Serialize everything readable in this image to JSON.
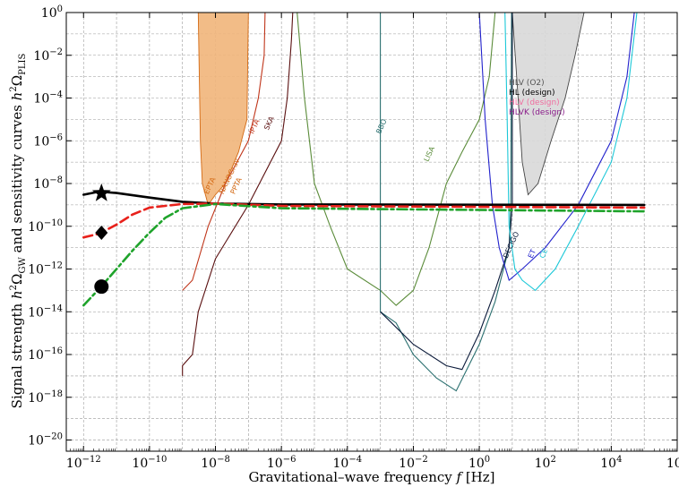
{
  "chart_data": {
    "type": "line",
    "xlabel": "Gravitational–wave frequency f [Hz]",
    "ylabel": "Signal strength h²ΩGW and sensitivity curves h²ΩPLIS",
    "x_scale": "log",
    "y_scale": "log",
    "xlim": [
      3e-13,
      1000000.0
    ],
    "ylim": [
      3e-21,
      1
    ],
    "grid": true,
    "x_ticks": [
      {
        "value": 1e-12,
        "base": "10",
        "exp": "−12"
      },
      {
        "value": 1e-10,
        "base": "10",
        "exp": "−10"
      },
      {
        "value": 1e-08,
        "base": "10",
        "exp": "−8"
      },
      {
        "value": 1e-06,
        "base": "10",
        "exp": "−6"
      },
      {
        "value": 0.0001,
        "base": "10",
        "exp": "−4"
      },
      {
        "value": 0.01,
        "base": "10",
        "exp": "−2"
      },
      {
        "value": 1,
        "base": "10",
        "exp": "0"
      },
      {
        "value": 100,
        "base": "10",
        "exp": "2"
      },
      {
        "value": 10000.0,
        "base": "10",
        "exp": "4"
      },
      {
        "value": 1000000.0,
        "base": "10",
        "exp": "6"
      }
    ],
    "y_ticks": [
      {
        "value": 1e-20,
        "base": "10",
        "exp": "−20"
      },
      {
        "value": 1e-18,
        "base": "10",
        "exp": "−18"
      },
      {
        "value": 1e-16,
        "base": "10",
        "exp": "−16"
      },
      {
        "value": 1e-14,
        "base": "10",
        "exp": "−14"
      },
      {
        "value": 1e-12,
        "base": "10",
        "exp": "−12"
      },
      {
        "value": 1e-10,
        "base": "10",
        "exp": "−10"
      },
      {
        "value": 1e-08,
        "base": "10",
        "exp": "−8"
      },
      {
        "value": 1e-06,
        "base": "10",
        "exp": "−6"
      },
      {
        "value": 0.0001,
        "base": "10",
        "exp": "−4"
      },
      {
        "value": 0.01,
        "base": "10",
        "exp": "−2"
      },
      {
        "value": 1,
        "base": "10",
        "exp": "0"
      }
    ],
    "signals": [
      {
        "style": "solid",
        "color": "#000000",
        "marker": "star",
        "marker_point": [
          3.5e-12,
          3.5e-09
        ],
        "points": [
          [
            1e-12,
            3e-09
          ],
          [
            3e-12,
            4.2e-09
          ],
          [
            1e-11,
            3.6e-09
          ],
          [
            1e-10,
            2.2e-09
          ],
          [
            1e-09,
            1.4e-09
          ],
          [
            1e-08,
            1.15e-09
          ],
          [
            1e-06,
            1.05e-09
          ],
          [
            100000.0,
            1e-09
          ]
        ]
      },
      {
        "style": "dashed",
        "color": "#e8211b",
        "marker": "diamond",
        "marker_point": [
          3.5e-12,
          5e-11
        ],
        "points": [
          [
            1e-12,
            3e-11
          ],
          [
            3e-12,
            4.5e-11
          ],
          [
            1e-11,
            1.2e-10
          ],
          [
            3e-11,
            3.5e-10
          ],
          [
            1e-10,
            7.5e-10
          ],
          [
            1e-09,
            1.1e-09
          ],
          [
            1e-08,
            1.15e-09
          ],
          [
            1e-06,
            9e-10
          ],
          [
            100000.0,
            7.5e-10
          ]
        ]
      },
      {
        "style": "dashdot",
        "color": "#1fa32b",
        "marker": "circle",
        "marker_point": [
          3.5e-12,
          1.5e-13
        ],
        "points": [
          [
            1e-12,
            2e-14
          ],
          [
            3e-12,
            1.2e-13
          ],
          [
            1e-11,
            1e-12
          ],
          [
            3e-11,
            7e-12
          ],
          [
            1e-10,
            5e-11
          ],
          [
            3e-10,
            2.5e-10
          ],
          [
            1e-09,
            7e-10
          ],
          [
            1e-08,
            1.1e-09
          ],
          [
            1e-06,
            7e-10
          ],
          [
            100000.0,
            5e-10
          ]
        ]
      }
    ],
    "detectors": [
      {
        "name": "SKA",
        "color": "#5a1010",
        "label_at": [
          4e-07,
          3e-06
        ],
        "curve": [
          [
            1e-09,
            1e-17
          ],
          [
            1e-09,
            3e-17
          ],
          [
            2e-09,
            1e-16
          ],
          [
            3e-09,
            1e-14
          ],
          [
            1e-08,
            3e-12
          ],
          [
            1e-07,
            1e-09
          ],
          [
            1e-06,
            1e-06
          ],
          [
            1.5e-06,
            0.0001
          ],
          [
            2e-06,
            0.05
          ],
          [
            2.2e-06,
            1
          ]
        ]
      },
      {
        "name": "IPTA",
        "color": "#c0361b",
        "label_at": [
          1.4e-07,
          2e-06
        ],
        "curve": [
          [
            1e-09,
            1e-13
          ],
          [
            1e-09,
            1e-13
          ],
          [
            2e-09,
            3e-13
          ],
          [
            6e-09,
            1e-10
          ],
          [
            2e-08,
            1e-08
          ],
          [
            1e-07,
            1e-06
          ],
          [
            2e-07,
            0.0001
          ],
          [
            3e-07,
            0.01
          ],
          [
            3.2e-07,
            1
          ]
        ]
      },
      {
        "name": "LISA",
        "color": "#5b8c3a",
        "label_at": [
          0.028,
          1e-07
        ],
        "curve": [
          [
            3e-06,
            1
          ],
          [
            5e-06,
            0.0001
          ],
          [
            1e-05,
            1e-08
          ],
          [
            3e-05,
            1e-10
          ],
          [
            0.0001,
            1e-12
          ],
          [
            0.001,
            1e-13
          ],
          [
            0.003,
            2e-14
          ],
          [
            0.01,
            1e-13
          ],
          [
            0.03,
            1e-11
          ],
          [
            0.1,
            1e-08
          ],
          [
            0.3,
            3e-07
          ],
          [
            1,
            1e-05
          ],
          [
            2,
            0.001
          ],
          [
            3,
            1
          ]
        ]
      },
      {
        "name": "BBO",
        "color": "#2a6f6f",
        "label_at": [
          0.001,
          2e-06
        ],
        "curve": [
          [
            0.001,
            1
          ],
          [
            0.001,
            1e-14
          ],
          [
            0.003,
            3e-15
          ],
          [
            0.01,
            1e-16
          ],
          [
            0.05,
            8e-18
          ],
          [
            0.2,
            2e-18
          ],
          [
            1,
            3e-16
          ],
          [
            3,
            3e-14
          ],
          [
            8,
            1e-11
          ],
          [
            9,
            1e-09
          ],
          [
            9.5,
            1
          ]
        ]
      },
      {
        "name": "DECIGO",
        "color": "#0b1a3a",
        "label_at": [
          7,
          3e-12
        ],
        "curve": [
          [
            0.001,
            1e-14
          ],
          [
            0.01,
            3e-16
          ],
          [
            0.1,
            3e-17
          ],
          [
            0.3,
            2e-17
          ],
          [
            1,
            1e-15
          ],
          [
            3,
            1e-13
          ],
          [
            8,
            1e-11
          ],
          [
            10,
            1e-09
          ],
          [
            10,
            1
          ]
        ]
      },
      {
        "name": "ET",
        "color": "#2222cc",
        "label_at": [
          40,
          3e-12
        ],
        "curve": [
          [
            1,
            1
          ],
          [
            1.5,
            1e-05
          ],
          [
            2.5,
            1e-09
          ],
          [
            4,
            1e-11
          ],
          [
            8,
            3e-13
          ],
          [
            20,
            1e-12
          ],
          [
            100,
            1e-11
          ],
          [
            1000.0,
            1e-09
          ],
          [
            10000.0,
            1e-06
          ],
          [
            30000.0,
            0.001
          ],
          [
            50000.0,
            1
          ]
        ]
      },
      {
        "name": "CE",
        "color": "#1cc8d8",
        "label_at": [
          90,
          3e-12
        ],
        "curve": [
          [
            6,
            1
          ],
          [
            7,
            1e-05
          ],
          [
            8,
            1e-10
          ],
          [
            12,
            1e-12
          ],
          [
            20,
            3e-13
          ],
          [
            50,
            1e-13
          ],
          [
            200,
            1e-12
          ],
          [
            1000.0,
            1e-10
          ],
          [
            10000.0,
            1e-07
          ],
          [
            30000.0,
            0.0001
          ],
          [
            60000.0,
            1
          ]
        ]
      }
    ],
    "shaded_regions": [
      {
        "name": "HLV (O2)",
        "fill": "#d8d8d8",
        "stroke": "#444444",
        "curve": [
          [
            10,
            1
          ],
          [
            15,
            0.0001
          ],
          [
            20,
            1e-07
          ],
          [
            30,
            3e-09
          ],
          [
            60,
            1e-08
          ],
          [
            150,
            1e-06
          ],
          [
            400,
            0.0001
          ],
          [
            800,
            0.01
          ],
          [
            1500,
            1
          ]
        ]
      },
      {
        "name": "PTA bound",
        "fill": "#f1b57a",
        "stroke": "#d46a14",
        "curve": [
          [
            3e-09,
            1
          ],
          [
            3.5e-09,
            1e-06
          ],
          [
            4e-09,
            1e-08
          ],
          [
            6e-09,
            1e-09
          ],
          [
            1e-08,
            3e-09
          ],
          [
            2e-08,
            1e-08
          ],
          [
            5e-08,
            3e-07
          ],
          [
            9e-08,
            1e-05
          ],
          [
            1e-07,
            1
          ]
        ]
      }
    ],
    "detector_labels_small": [
      "EPTA",
      "NANOGrav",
      "PPTA"
    ],
    "legend": [
      {
        "label": "HLV (O2)",
        "color": "#555555"
      },
      {
        "label": "HL (design)",
        "color": "#000000"
      },
      {
        "label": "HLV (design)",
        "color": "#f06ea0"
      },
      {
        "label": "HLVK (design)",
        "color": "#8b1e8b"
      }
    ]
  }
}
